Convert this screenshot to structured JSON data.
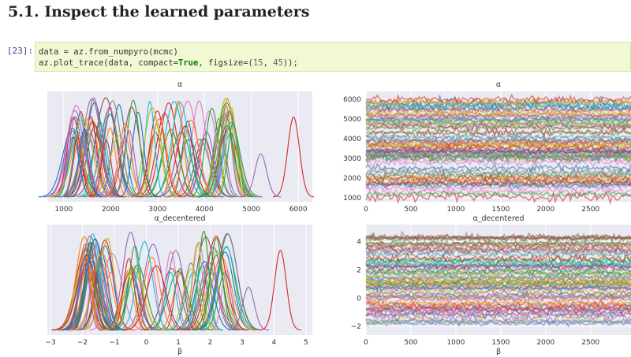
{
  "section": {
    "title": "5.1. Inspect the learned parameters"
  },
  "cell": {
    "prompt": "[23]:",
    "line1": "data = az.from_numpyro(mcmc)",
    "line2_pre": "az.plot_trace(data, compact=",
    "line2_kw": "True",
    "line2_mid": ", figsize=(",
    "line2_n1": "15",
    "line2_sep": ", ",
    "line2_n2": "45",
    "line2_post": "));"
  },
  "colors": {
    "plot_bg": "#eaeaf2",
    "grid": "#ffffff",
    "palette": [
      "#1f77b4",
      "#ff7f0e",
      "#2ca02c",
      "#d62728",
      "#9467bd",
      "#8c564b",
      "#e377c2",
      "#7f7f7f",
      "#bcbd22",
      "#17becf"
    ]
  },
  "chart_data": [
    {
      "type": "line",
      "panel": "alpha-density",
      "title": "α",
      "xlabel": "α_decentered",
      "xlim": [
        650,
        6300
      ],
      "xticks": [
        "1000",
        "2000",
        "3000",
        "4000",
        "5000",
        "6000"
      ],
      "xtick_values": [
        1000,
        2000,
        3000,
        4000,
        5000,
        6000
      ],
      "series_count": 85,
      "peak_means_range": [
        1000,
        4800
      ],
      "outlier_peaks": [
        5200,
        5900
      ]
    },
    {
      "type": "line",
      "panel": "alpha-trace",
      "title": "α",
      "xlim": [
        0,
        2950
      ],
      "ylim": [
        800,
        6400
      ],
      "xticks": [
        "0",
        "500",
        "1000",
        "1500",
        "2000",
        "2500"
      ],
      "xtick_values": [
        0,
        500,
        1000,
        1500,
        2000,
        2500
      ],
      "yticks": [
        "1000",
        "2000",
        "3000",
        "4000",
        "5000",
        "6000"
      ],
      "ytick_values": [
        1000,
        2000,
        3000,
        4000,
        5000,
        6000
      ],
      "band_range": [
        1000,
        6000
      ]
    },
    {
      "type": "line",
      "panel": "beta-density",
      "title": "",
      "xlabel": "β",
      "xlim": [
        -3.1,
        5.2
      ],
      "xticks": [
        "−3",
        "−2",
        "−1",
        "0",
        "1",
        "2",
        "3",
        "4",
        "5"
      ],
      "xtick_values": [
        -3,
        -2,
        -1,
        0,
        1,
        2,
        3,
        4,
        5
      ],
      "series_count": 85,
      "peak_means_range": [
        -2.2,
        2.8
      ],
      "outlier_peaks": [
        3.2,
        4.2
      ]
    },
    {
      "type": "line",
      "panel": "beta-trace",
      "title": "",
      "xlabel": "β",
      "xlim": [
        0,
        2950
      ],
      "ylim": [
        -2.6,
        5.2
      ],
      "xticks": [
        "0",
        "500",
        "1000",
        "1500",
        "2000",
        "2500"
      ],
      "xtick_values": [
        0,
        500,
        1000,
        1500,
        2000,
        2500
      ],
      "yticks": [
        "4",
        "2",
        "0",
        "−2"
      ],
      "ytick_values": [
        4,
        2,
        0,
        -2
      ],
      "band_range": [
        -2,
        4.3
      ]
    }
  ],
  "labels": {
    "mid_title": "α_decentered"
  }
}
